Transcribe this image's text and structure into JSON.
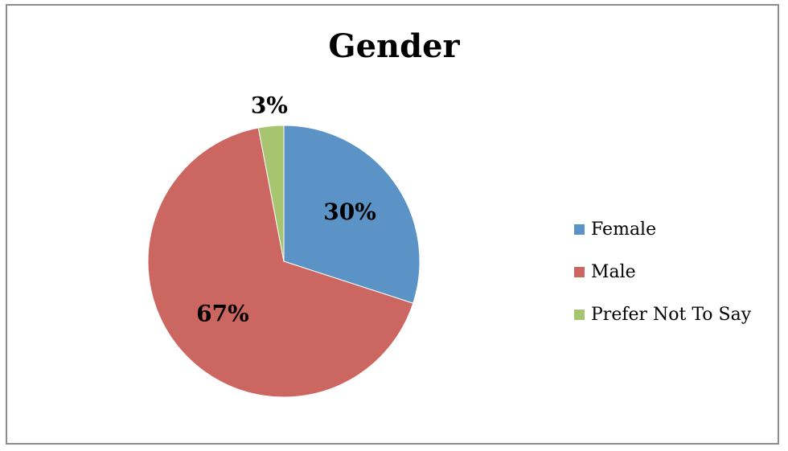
{
  "chart_data": {
    "type": "pie",
    "title": "Gender",
    "categories": [
      "Female",
      "Male",
      "Prefer Not To Say"
    ],
    "values": [
      30,
      67,
      3
    ],
    "data_labels": [
      "30%",
      "67%",
      "3%"
    ],
    "colors": [
      "#5b93c7",
      "#cc6660",
      "#a6c56e"
    ],
    "legend": "right",
    "start_angle_deg": 0,
    "direction": "clockwise"
  }
}
